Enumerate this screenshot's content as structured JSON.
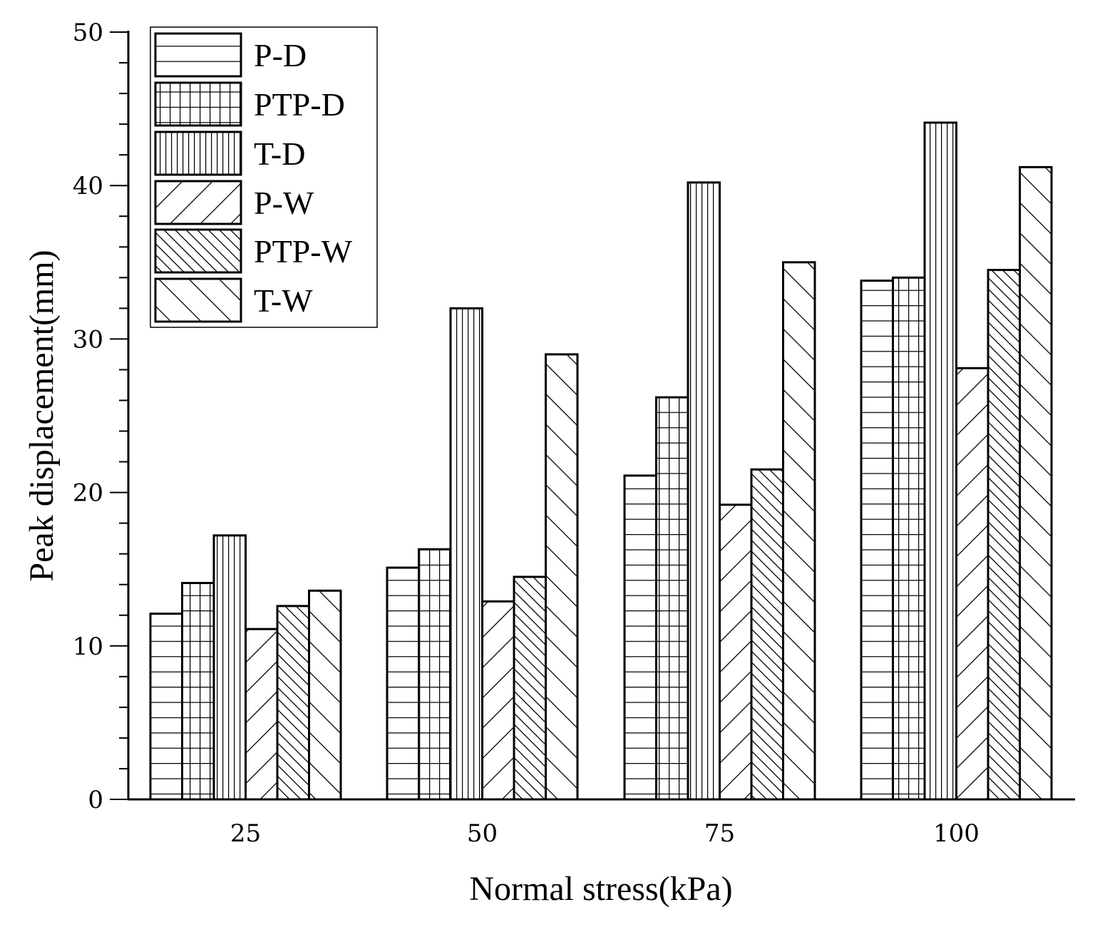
{
  "chart_data": {
    "type": "bar",
    "title": "",
    "xlabel": "Normal stress(kPa)",
    "ylabel": "Peak displacement(mm)",
    "categories": [
      "25",
      "50",
      "75",
      "100"
    ],
    "ylim": [
      0,
      50
    ],
    "yticks": [
      0,
      10,
      20,
      30,
      40,
      50
    ],
    "yticklabels": [
      "0",
      "10",
      "20",
      "30",
      "40",
      "50"
    ],
    "legend_position": "top-left",
    "grid": false,
    "series": [
      {
        "name": "P-D",
        "pattern": "horizontal",
        "values": [
          12.1,
          15.1,
          21.1,
          33.8
        ]
      },
      {
        "name": "PTP-D",
        "pattern": "grid",
        "values": [
          14.1,
          16.3,
          26.2,
          34.0
        ]
      },
      {
        "name": "T-D",
        "pattern": "vertical",
        "values": [
          17.2,
          32.0,
          40.2,
          44.1
        ]
      },
      {
        "name": "P-W",
        "pattern": "diagonal-up",
        "values": [
          11.1,
          12.9,
          19.2,
          28.1
        ]
      },
      {
        "name": "PTP-W",
        "pattern": "diagonal-down-dense",
        "values": [
          12.6,
          14.5,
          21.5,
          34.5
        ]
      },
      {
        "name": "T-W",
        "pattern": "diagonal-down",
        "values": [
          13.6,
          29.0,
          35.0,
          41.2
        ]
      }
    ]
  }
}
